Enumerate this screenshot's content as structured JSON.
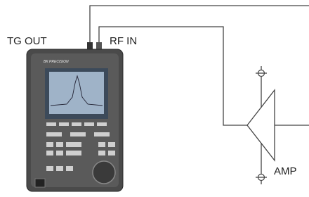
{
  "labels": {
    "tg_out": "TG OUT",
    "rf_in": "RF IN",
    "amp": "AMP",
    "brand": "BK PRECISION"
  }
}
